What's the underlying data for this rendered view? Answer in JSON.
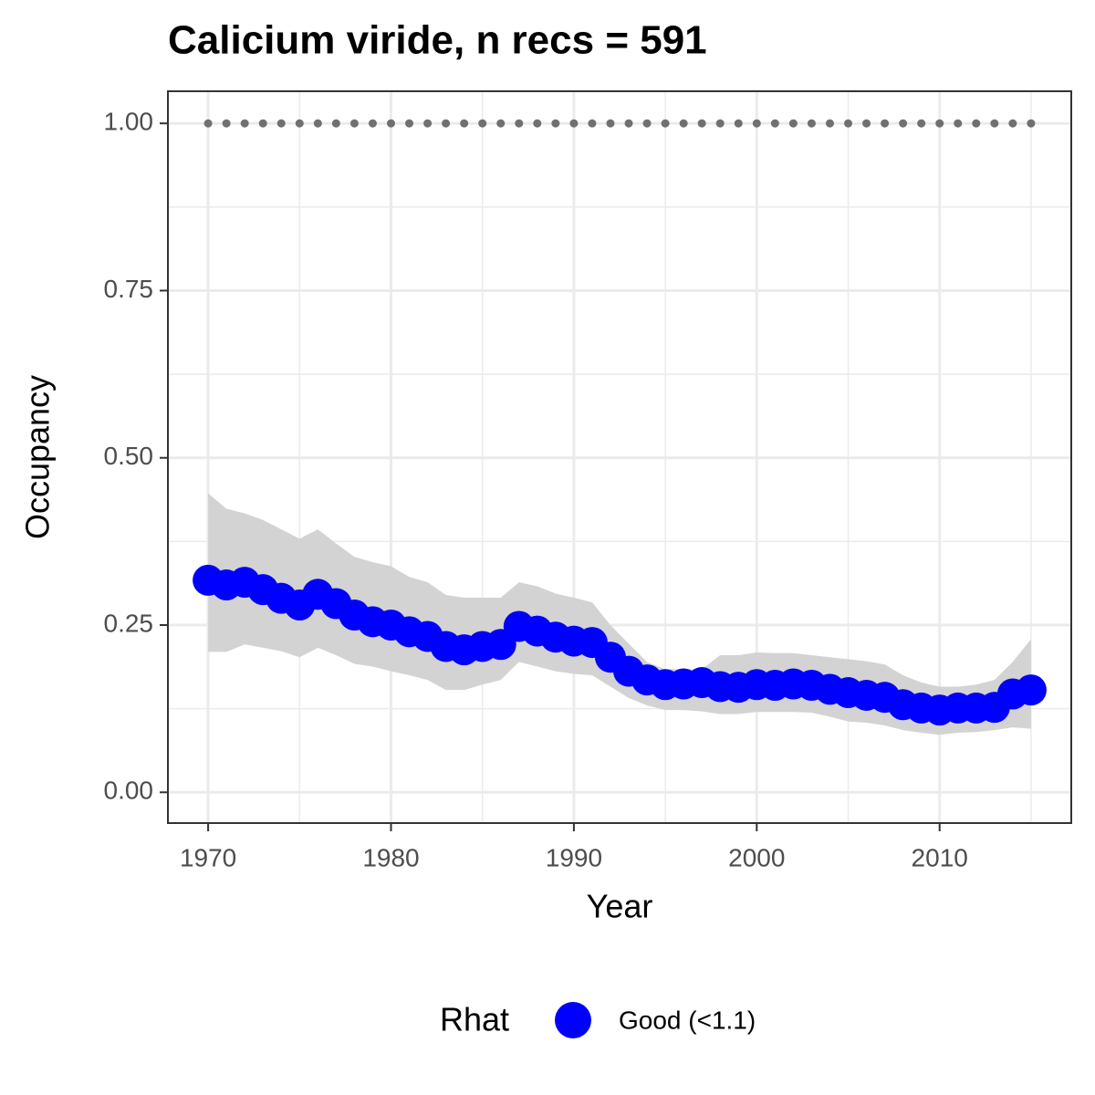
{
  "chart_data": {
    "type": "line",
    "title": "Calicium viride, n recs = 591",
    "x_label": "Year",
    "y_label": "Occupancy",
    "legend_title": "Rhat",
    "x": [
      1970,
      1971,
      1972,
      1973,
      1974,
      1975,
      1976,
      1977,
      1978,
      1979,
      1980,
      1981,
      1982,
      1983,
      1984,
      1985,
      1986,
      1987,
      1988,
      1989,
      1990,
      1991,
      1992,
      1993,
      1994,
      1995,
      1996,
      1997,
      1998,
      1999,
      2000,
      2001,
      2002,
      2003,
      2004,
      2005,
      2006,
      2007,
      2008,
      2009,
      2010,
      2011,
      2012,
      2013,
      2014,
      2015
    ],
    "series": [
      {
        "name": "Good (<1.1)",
        "color": "#0000ff",
        "band_color": "#d3d3d3",
        "values": [
          0.317,
          0.31,
          0.314,
          0.303,
          0.29,
          0.28,
          0.296,
          0.282,
          0.265,
          0.255,
          0.25,
          0.24,
          0.233,
          0.218,
          0.213,
          0.218,
          0.221,
          0.248,
          0.241,
          0.232,
          0.226,
          0.224,
          0.202,
          0.181,
          0.168,
          0.161,
          0.162,
          0.164,
          0.158,
          0.157,
          0.161,
          0.16,
          0.162,
          0.16,
          0.154,
          0.149,
          0.145,
          0.142,
          0.131,
          0.126,
          0.123,
          0.126,
          0.126,
          0.127,
          0.147,
          0.153
        ],
        "upper": [
          0.447,
          0.424,
          0.417,
          0.407,
          0.393,
          0.379,
          0.393,
          0.372,
          0.352,
          0.344,
          0.338,
          0.322,
          0.314,
          0.295,
          0.291,
          0.291,
          0.291,
          0.314,
          0.308,
          0.297,
          0.291,
          0.284,
          0.25,
          0.222,
          0.195,
          0.184,
          0.184,
          0.184,
          0.205,
          0.205,
          0.209,
          0.208,
          0.208,
          0.205,
          0.202,
          0.199,
          0.196,
          0.191,
          0.175,
          0.164,
          0.158,
          0.158,
          0.161,
          0.168,
          0.195,
          0.229
        ],
        "lower": [
          0.21,
          0.21,
          0.221,
          0.216,
          0.211,
          0.202,
          0.216,
          0.205,
          0.192,
          0.188,
          0.181,
          0.175,
          0.168,
          0.153,
          0.153,
          0.161,
          0.168,
          0.195,
          0.188,
          0.181,
          0.177,
          0.175,
          0.158,
          0.141,
          0.13,
          0.123,
          0.123,
          0.121,
          0.117,
          0.117,
          0.12,
          0.12,
          0.12,
          0.119,
          0.113,
          0.106,
          0.104,
          0.1,
          0.093,
          0.089,
          0.086,
          0.089,
          0.09,
          0.093,
          0.097,
          0.095
        ]
      }
    ],
    "dotted_values": [
      1,
      1,
      1,
      1,
      1,
      1,
      1,
      1,
      1,
      1,
      1,
      1,
      1,
      1,
      1,
      1,
      1,
      1,
      1,
      1,
      1,
      1,
      1,
      1,
      1,
      1,
      1,
      1,
      1,
      1,
      1,
      1,
      1,
      1,
      1,
      1,
      1,
      1,
      1,
      1,
      1,
      1,
      1,
      1,
      1,
      1
    ],
    "dotted_color": "#707070",
    "xlim": [
      1967.8,
      2017.2
    ],
    "xticks": [
      1970,
      1980,
      1990,
      2000,
      2010
    ],
    "minor_xticks": [
      1975,
      1985,
      1995,
      2005,
      2015
    ],
    "ylim": [
      -0.046,
      1.048
    ],
    "yticks": [
      {
        "value": 0,
        "label": "0.00"
      },
      {
        "value": 0.25,
        "label": "0.25"
      },
      {
        "value": 0.5,
        "label": "0.50"
      },
      {
        "value": 0.75,
        "label": "0.75"
      },
      {
        "value": 1,
        "label": "1.00"
      }
    ],
    "minor_yticks": [
      0.125,
      0.375,
      0.625,
      0.875
    ],
    "grid": true
  }
}
